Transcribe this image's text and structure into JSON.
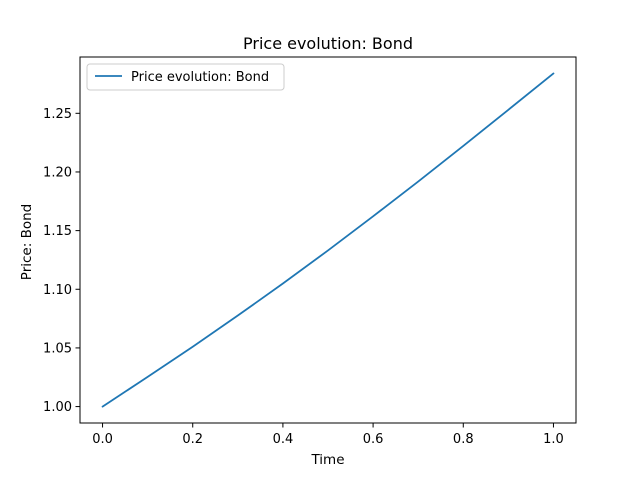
{
  "chart_data": {
    "type": "line",
    "title": "Price evolution: Bond",
    "xlabel": "Time",
    "ylabel": "Price: Bond",
    "xlim": [
      -0.05,
      1.05
    ],
    "ylim": [
      0.986,
      1.298
    ],
    "xticks": [
      0.0,
      0.2,
      0.4,
      0.6,
      0.8,
      1.0
    ],
    "xtick_labels": [
      "0.0",
      "0.2",
      "0.4",
      "0.6",
      "0.8",
      "1.0"
    ],
    "yticks": [
      1.0,
      1.05,
      1.1,
      1.15,
      1.2,
      1.25
    ],
    "ytick_labels": [
      "1.00",
      "1.05",
      "1.10",
      "1.15",
      "1.20",
      "1.25"
    ],
    "grid": false,
    "legend_position": "upper-left",
    "series": [
      {
        "name": "Price evolution: Bond",
        "color": "#1f77b4",
        "x": [
          0.0,
          0.1,
          0.2,
          0.3,
          0.4,
          0.5,
          0.6,
          0.7,
          0.8,
          0.9,
          1.0
        ],
        "y": [
          1.0,
          1.0253,
          1.051,
          1.0776,
          1.1049,
          1.1331,
          1.1622,
          1.1918,
          1.2222,
          1.253,
          1.284
        ]
      }
    ]
  }
}
